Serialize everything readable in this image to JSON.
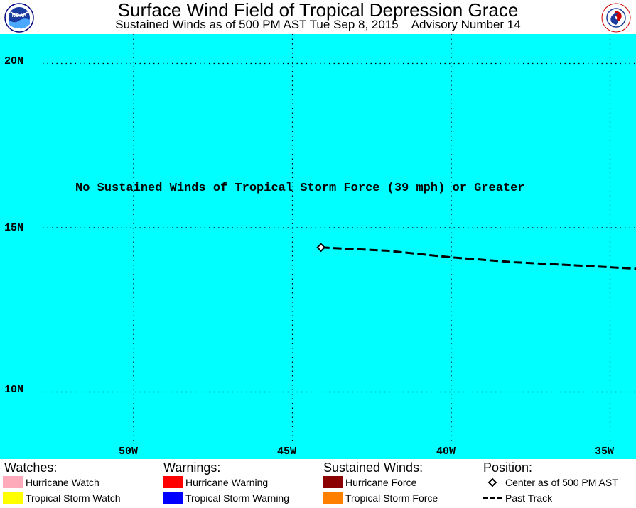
{
  "header": {
    "title": "Surface Wind Field of Tropical Depression Grace",
    "subtitle": "Sustained Winds as of 500 PM AST Tue Sep 8, 2015    Advisory Number 14",
    "left_logo_text": "NOAA",
    "right_logo_text": "NATIONAL WEATHER SERVICE"
  },
  "map": {
    "background_color": "#00ffff",
    "note": "No Sustained Winds of Tropical Storm Force (39 mph) or Greater",
    "lat_labels": [
      "20N",
      "15N",
      "10N"
    ],
    "lon_labels": [
      "50W",
      "45W",
      "40W",
      "35W"
    ],
    "grid": "dotted",
    "storm_center": {
      "lon": -44.1,
      "lat": 14.4,
      "icon": "diamond-icon"
    },
    "past_track": [
      {
        "lon": -44.1,
        "lat": 14.4
      },
      {
        "lon": -42.0,
        "lat": 14.3
      },
      {
        "lon": -40.0,
        "lat": 14.1
      },
      {
        "lon": -38.0,
        "lat": 13.95
      },
      {
        "lon": -36.0,
        "lat": 13.85
      },
      {
        "lon": -34.1,
        "lat": 13.75
      }
    ]
  },
  "legend": {
    "watches": {
      "heading": "Watches:",
      "items": [
        {
          "label": "Hurricane Watch",
          "color": "#ffaabb"
        },
        {
          "label": "Tropical Storm Watch",
          "color": "#ffff00"
        }
      ]
    },
    "warnings": {
      "heading": "Warnings:",
      "items": [
        {
          "label": "Hurricane Warning",
          "color": "#ff0000"
        },
        {
          "label": "Tropical Storm Warning",
          "color": "#0000ff"
        }
      ]
    },
    "winds": {
      "heading": "Sustained Winds:",
      "items": [
        {
          "label": "Hurricane Force",
          "color": "#8b0000"
        },
        {
          "label": "Tropical Storm Force",
          "color": "#ff8000"
        }
      ]
    },
    "position": {
      "heading": "Position:",
      "items": [
        {
          "label": "Center as of 500 PM AST",
          "icon": "diamond-icon"
        },
        {
          "label": "Past Track",
          "icon": "dashed-line-icon"
        }
      ]
    }
  }
}
